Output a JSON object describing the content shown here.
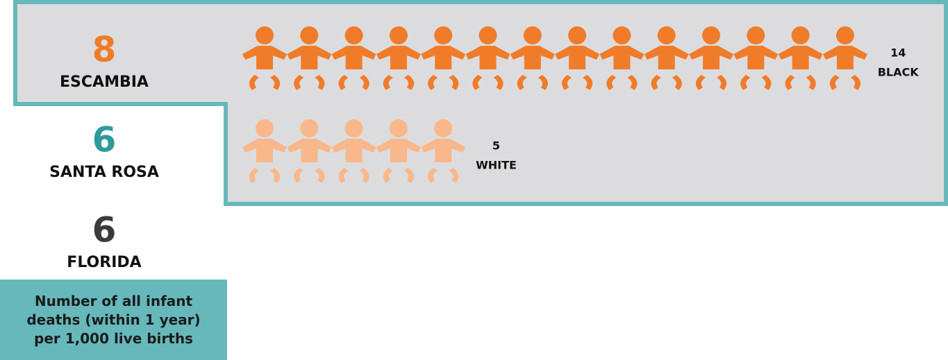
{
  "regions": [
    {
      "value": 8,
      "name": "ESCAMBIA",
      "color": "#f07c2a"
    },
    {
      "value": 6,
      "name": "SANTA ROSA",
      "color": "#2f9a9c"
    },
    {
      "value": 6,
      "name": "FLORIDA",
      "color": "#3a3a3a"
    }
  ],
  "groups": [
    {
      "count": 14,
      "label": "BLACK",
      "color": "#f07c2a"
    },
    {
      "count": 5,
      "label": "WHITE",
      "color": "#f8b88b"
    }
  ],
  "note": "Number of all infant deaths (within 1 year) per 1,000 live births"
}
